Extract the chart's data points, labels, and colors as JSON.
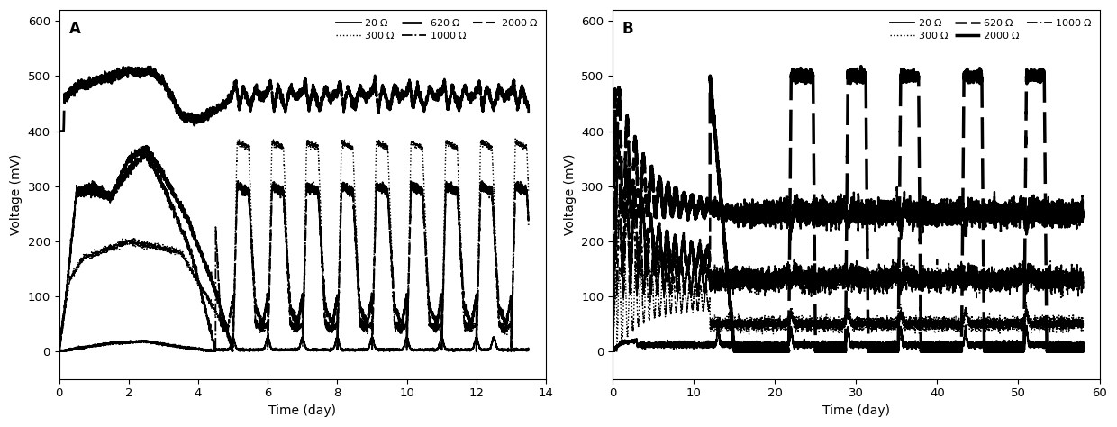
{
  "panel_A": {
    "label": "A",
    "xlim": [
      0,
      14
    ],
    "xticks": [
      0,
      2,
      4,
      6,
      8,
      10,
      12,
      14
    ],
    "ylim": [
      -50,
      620
    ],
    "yticks": [
      0,
      100,
      200,
      300,
      400,
      500,
      600
    ]
  },
  "panel_B": {
    "label": "B",
    "xlim": [
      0,
      60
    ],
    "xticks": [
      0,
      10,
      20,
      30,
      40,
      50,
      60
    ],
    "ylim": [
      -50,
      620
    ],
    "yticks": [
      0,
      100,
      200,
      300,
      400,
      500,
      600
    ]
  },
  "ylabel": "Voltage (mV)",
  "xlabel": "Time (day)"
}
